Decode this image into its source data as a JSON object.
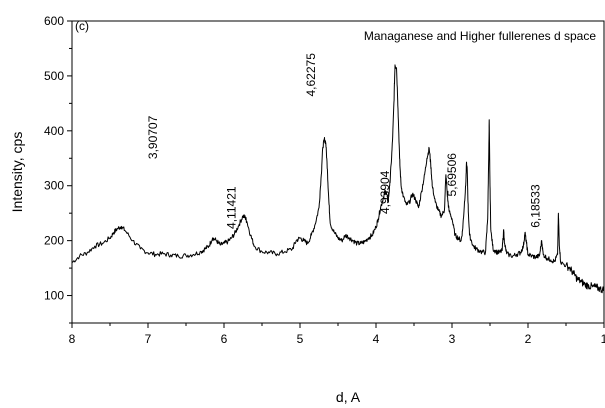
{
  "chart_data": {
    "type": "line",
    "title": "Managanese and Higher fullerenes d space",
    "corner_label": "(c)",
    "xlabel": "d, A",
    "ylabel": "Intensity, cps",
    "xlim": [
      8,
      1
    ],
    "ylim": [
      50,
      600
    ],
    "x_ticks": [
      8,
      7,
      6,
      5,
      4,
      3,
      2,
      1
    ],
    "x_tick_labels": [
      "8",
      "7",
      "6",
      "5",
      "4",
      "3",
      "2",
      "1"
    ],
    "y_ticks": [
      100,
      200,
      300,
      400,
      500,
      600
    ],
    "y_tick_labels": [
      "100",
      "200",
      "300",
      "400",
      "500",
      "600"
    ],
    "line_color": "#000000",
    "annotations": [
      {
        "text": "3,90707",
        "x": 6.88,
        "y": 388
      },
      {
        "text": "4,11421",
        "x": 5.85,
        "y": 260
      },
      {
        "text": "4,62275",
        "x": 4.8,
        "y": 502
      },
      {
        "text": "4,93904",
        "x": 3.83,
        "y": 288
      },
      {
        "text": "5,69506",
        "x": 2.95,
        "y": 320
      },
      {
        "text": "6,18533",
        "x": 1.85,
        "y": 263
      }
    ],
    "series": [
      {
        "points": [
          [
            8.0,
            160
          ],
          [
            7.9,
            172
          ],
          [
            7.8,
            178
          ],
          [
            7.7,
            190
          ],
          [
            7.6,
            195
          ],
          [
            7.5,
            205
          ],
          [
            7.45,
            215
          ],
          [
            7.4,
            222
          ],
          [
            7.35,
            226
          ],
          [
            7.3,
            218
          ],
          [
            7.2,
            200
          ],
          [
            7.1,
            185
          ],
          [
            7.0,
            178
          ],
          [
            6.9,
            175
          ],
          [
            6.8,
            176
          ],
          [
            6.7,
            174
          ],
          [
            6.6,
            172
          ],
          [
            6.5,
            173
          ],
          [
            6.4,
            175
          ],
          [
            6.3,
            180
          ],
          [
            6.25,
            185
          ],
          [
            6.2,
            190
          ],
          [
            6.15,
            205
          ],
          [
            6.1,
            200
          ],
          [
            6.05,
            192
          ],
          [
            6.0,
            195
          ],
          [
            5.95,
            198
          ],
          [
            5.9,
            205
          ],
          [
            5.85,
            215
          ],
          [
            5.8,
            230
          ],
          [
            5.75,
            245
          ],
          [
            5.72,
            242
          ],
          [
            5.7,
            235
          ],
          [
            5.65,
            210
          ],
          [
            5.6,
            190
          ],
          [
            5.5,
            180
          ],
          [
            5.4,
            178
          ],
          [
            5.3,
            176
          ],
          [
            5.2,
            180
          ],
          [
            5.1,
            185
          ],
          [
            5.05,
            200
          ],
          [
            5.0,
            205
          ],
          [
            4.95,
            200
          ],
          [
            4.9,
            195
          ],
          [
            4.85,
            210
          ],
          [
            4.8,
            230
          ],
          [
            4.75,
            260
          ],
          [
            4.72,
            320
          ],
          [
            4.7,
            370
          ],
          [
            4.68,
            385
          ],
          [
            4.66,
            378
          ],
          [
            4.64,
            330
          ],
          [
            4.62,
            270
          ],
          [
            4.6,
            230
          ],
          [
            4.55,
            215
          ],
          [
            4.5,
            205
          ],
          [
            4.45,
            200
          ],
          [
            4.4,
            210
          ],
          [
            4.35,
            205
          ],
          [
            4.3,
            200
          ],
          [
            4.25,
            195
          ],
          [
            4.2,
            195
          ],
          [
            4.15,
            198
          ],
          [
            4.1,
            205
          ],
          [
            4.05,
            210
          ],
          [
            4.0,
            225
          ],
          [
            3.97,
            240
          ],
          [
            3.94,
            260
          ],
          [
            3.9,
            280
          ],
          [
            3.88,
            290
          ],
          [
            3.86,
            285
          ],
          [
            3.84,
            270
          ],
          [
            3.82,
            300
          ],
          [
            3.8,
            340
          ],
          [
            3.78,
            390
          ],
          [
            3.76,
            470
          ],
          [
            3.75,
            520
          ],
          [
            3.73,
            515
          ],
          [
            3.71,
            440
          ],
          [
            3.69,
            350
          ],
          [
            3.67,
            300
          ],
          [
            3.64,
            280
          ],
          [
            3.6,
            265
          ],
          [
            3.56,
            270
          ],
          [
            3.52,
            285
          ],
          [
            3.48,
            275
          ],
          [
            3.44,
            260
          ],
          [
            3.4,
            290
          ],
          [
            3.36,
            320
          ],
          [
            3.33,
            350
          ],
          [
            3.3,
            368
          ],
          [
            3.28,
            340
          ],
          [
            3.26,
            300
          ],
          [
            3.22,
            270
          ],
          [
            3.18,
            255
          ],
          [
            3.14,
            245
          ],
          [
            3.1,
            255
          ],
          [
            3.08,
            320
          ],
          [
            3.06,
            280
          ],
          [
            3.04,
            255
          ],
          [
            3.0,
            240
          ],
          [
            2.96,
            210
          ],
          [
            2.92,
            205
          ],
          [
            2.88,
            200
          ],
          [
            2.86,
            220
          ],
          [
            2.84,
            260
          ],
          [
            2.82,
            300
          ],
          [
            2.81,
            340
          ],
          [
            2.8,
            330
          ],
          [
            2.79,
            270
          ],
          [
            2.77,
            210
          ],
          [
            2.72,
            190
          ],
          [
            2.68,
            185
          ],
          [
            2.62,
            180
          ],
          [
            2.56,
            178
          ],
          [
            2.53,
            240
          ],
          [
            2.52,
            330
          ],
          [
            2.51,
            420
          ],
          [
            2.5,
            300
          ],
          [
            2.49,
            220
          ],
          [
            2.46,
            185
          ],
          [
            2.42,
            180
          ],
          [
            2.38,
            178
          ],
          [
            2.34,
            182
          ],
          [
            2.32,
            220
          ],
          [
            2.31,
            195
          ],
          [
            2.28,
            176
          ],
          [
            2.2,
            172
          ],
          [
            2.15,
            175
          ],
          [
            2.1,
            178
          ],
          [
            2.06,
            190
          ],
          [
            2.04,
            215
          ],
          [
            2.02,
            195
          ],
          [
            2.0,
            175
          ],
          [
            1.95,
            172
          ],
          [
            1.9,
            170
          ],
          [
            1.85,
            172
          ],
          [
            1.82,
            200
          ],
          [
            1.8,
            175
          ],
          [
            1.75,
            168
          ],
          [
            1.7,
            165
          ],
          [
            1.65,
            162
          ],
          [
            1.61,
            175
          ],
          [
            1.6,
            250
          ],
          [
            1.59,
            200
          ],
          [
            1.57,
            160
          ],
          [
            1.5,
            155
          ],
          [
            1.45,
            150
          ],
          [
            1.4,
            140
          ],
          [
            1.35,
            130
          ],
          [
            1.3,
            125
          ],
          [
            1.25,
            120
          ],
          [
            1.2,
            118
          ],
          [
            1.15,
            116
          ],
          [
            1.1,
            115
          ],
          [
            1.05,
            112
          ],
          [
            1.0,
            110
          ]
        ]
      }
    ]
  }
}
